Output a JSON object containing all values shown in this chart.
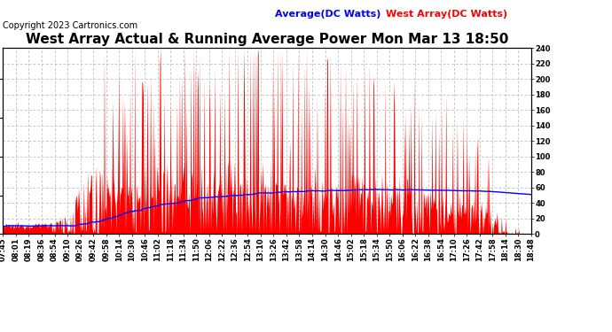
{
  "title": "West Array Actual & Running Average Power Mon Mar 13 18:50",
  "copyright": "Copyright 2023 Cartronics.com",
  "legend_average": "Average(DC Watts)",
  "legend_west": "West Array(DC Watts)",
  "legend_average_color": "#0000ff",
  "legend_west_color": "#ff0000",
  "ylim": [
    0,
    240
  ],
  "yticks": [
    0.0,
    20.0,
    40.0,
    60.0,
    80.0,
    100.0,
    120.0,
    140.0,
    160.0,
    180.0,
    200.0,
    220.0,
    240.0
  ],
  "background_color": "#ffffff",
  "grid_color": "#b0b0b0",
  "fill_color": "#ff0000",
  "avg_line_color": "#0000ff",
  "title_fontsize": 11,
  "copyright_fontsize": 7,
  "legend_fontsize": 8,
  "tick_fontsize": 6,
  "tick_labels": [
    "07:45",
    "08:01",
    "08:19",
    "08:36",
    "08:54",
    "09:10",
    "09:26",
    "09:42",
    "09:58",
    "10:14",
    "10:30",
    "10:46",
    "11:02",
    "11:18",
    "11:34",
    "11:50",
    "12:06",
    "12:22",
    "12:36",
    "12:54",
    "13:10",
    "13:26",
    "13:42",
    "13:58",
    "14:14",
    "14:30",
    "14:46",
    "15:02",
    "15:18",
    "15:34",
    "15:50",
    "16:06",
    "16:22",
    "16:38",
    "16:54",
    "17:10",
    "17:26",
    "17:42",
    "17:58",
    "18:14",
    "18:30",
    "18:48"
  ]
}
